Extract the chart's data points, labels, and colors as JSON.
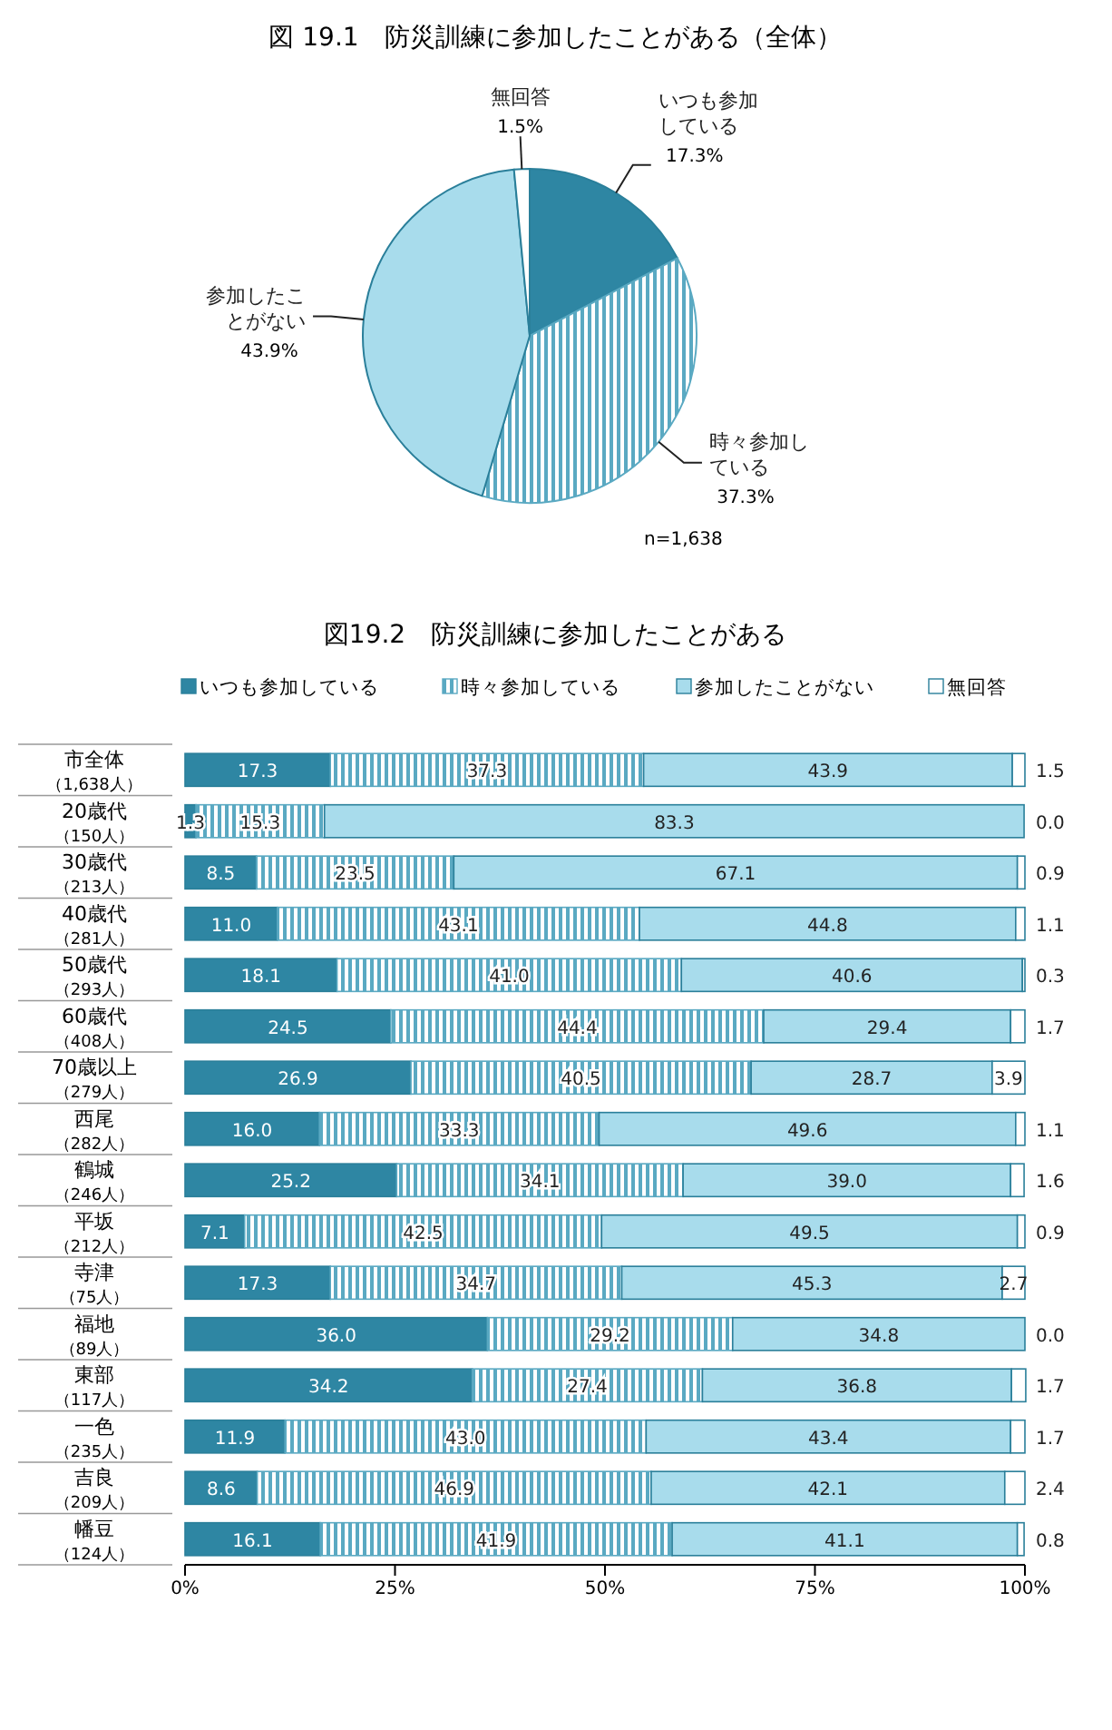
{
  "chart_data": [
    {
      "type": "pie",
      "title": "図 19.1　防災訓練に参加したことがある（全体）",
      "categories": [
        "いつも参加している",
        "時々参加している",
        "参加したことがない",
        "無回答"
      ],
      "values": [
        17.3,
        37.3,
        43.9,
        1.5
      ],
      "colors": [
        "#2e86a3",
        "#5aa9c2",
        "#a8dcec",
        "#ffffff"
      ],
      "value_labels": [
        "17.3%",
        "37.3%",
        "43.9%",
        "1.5%"
      ],
      "annotations": [
        "n=1,638"
      ]
    },
    {
      "type": "bar",
      "orientation": "horizontal",
      "stacked": true,
      "title": "図19.2　防災訓練に参加したことがある",
      "categories": [
        "市全体（1,638人）",
        "20歳代（150人）",
        "30歳代（213人）",
        "40歳代（281人）",
        "50歳代（293人）",
        "60歳代（408人）",
        "70歳以上（279人）",
        "西尾（282人）",
        "鶴城（246人）",
        "平坂（212人）",
        "寺津（75人）",
        "福地（89人）",
        "東部（117人）",
        "一色（235人）",
        "吉良（209人）",
        "幡豆（124人）"
      ],
      "series": [
        {
          "name": "いつも参加している",
          "color": "#2e86a3",
          "values": [
            17.3,
            1.3,
            8.5,
            11.0,
            18.1,
            24.5,
            26.9,
            16.0,
            25.2,
            7.1,
            17.3,
            36.0,
            34.2,
            11.9,
            8.6,
            16.1
          ],
          "value_labels": [
            "17.3",
            "1.3",
            "8.5",
            "11.0",
            "18.1",
            "24.5",
            "26.9",
            "16.0",
            "25.2",
            "7.1",
            "17.3",
            "36.0",
            "34.2",
            "11.9",
            "8.6",
            "16.1"
          ]
        },
        {
          "name": "時々参加している",
          "color": "#5aa9c2",
          "values": [
            37.3,
            15.3,
            23.5,
            43.1,
            41.0,
            44.4,
            40.5,
            33.3,
            34.1,
            42.5,
            34.7,
            29.2,
            27.4,
            43.0,
            46.9,
            41.9
          ],
          "value_labels": [
            "37.3",
            "15.3",
            "23.5",
            "43.1",
            "41.0",
            "44.4",
            "40.5",
            "33.3",
            "34.1",
            "42.5",
            "34.7",
            "29.2",
            "27.4",
            "43.0",
            "46.9",
            "41.9"
          ]
        },
        {
          "name": "参加したことがない",
          "color": "#a8dcec",
          "values": [
            43.9,
            83.3,
            67.1,
            44.8,
            40.6,
            29.4,
            28.7,
            49.6,
            39.0,
            49.5,
            45.3,
            34.8,
            36.8,
            43.4,
            42.1,
            41.1
          ],
          "value_labels": [
            "43.9",
            "83.3",
            "67.1",
            "44.8",
            "40.6",
            "29.4",
            "28.7",
            "49.6",
            "39.0",
            "49.5",
            "45.3",
            "34.8",
            "36.8",
            "43.4",
            "42.1",
            "41.1"
          ]
        },
        {
          "name": "無回答",
          "color": "#ffffff",
          "values": [
            1.5,
            0.0,
            0.9,
            1.1,
            0.3,
            1.7,
            3.9,
            1.1,
            1.6,
            0.9,
            2.7,
            0.0,
            1.7,
            1.7,
            2.4,
            0.8
          ],
          "value_labels": [
            "1.5",
            "0.0",
            "0.9",
            "1.1",
            "0.3",
            "1.7",
            "3.9",
            "1.1",
            "1.6",
            "0.9",
            "2.7",
            "0.0",
            "1.7",
            "1.7",
            "2.4",
            "0.8"
          ]
        }
      ],
      "legend": "top",
      "grid": false,
      "xlim": [
        0,
        100
      ],
      "xticks": [
        {
          "value": 0,
          "label": "0%"
        },
        {
          "value": 25,
          "label": "25%"
        },
        {
          "value": 50,
          "label": "50%"
        },
        {
          "value": 75,
          "label": "75%"
        },
        {
          "value": 100,
          "label": "100%"
        }
      ]
    }
  ]
}
